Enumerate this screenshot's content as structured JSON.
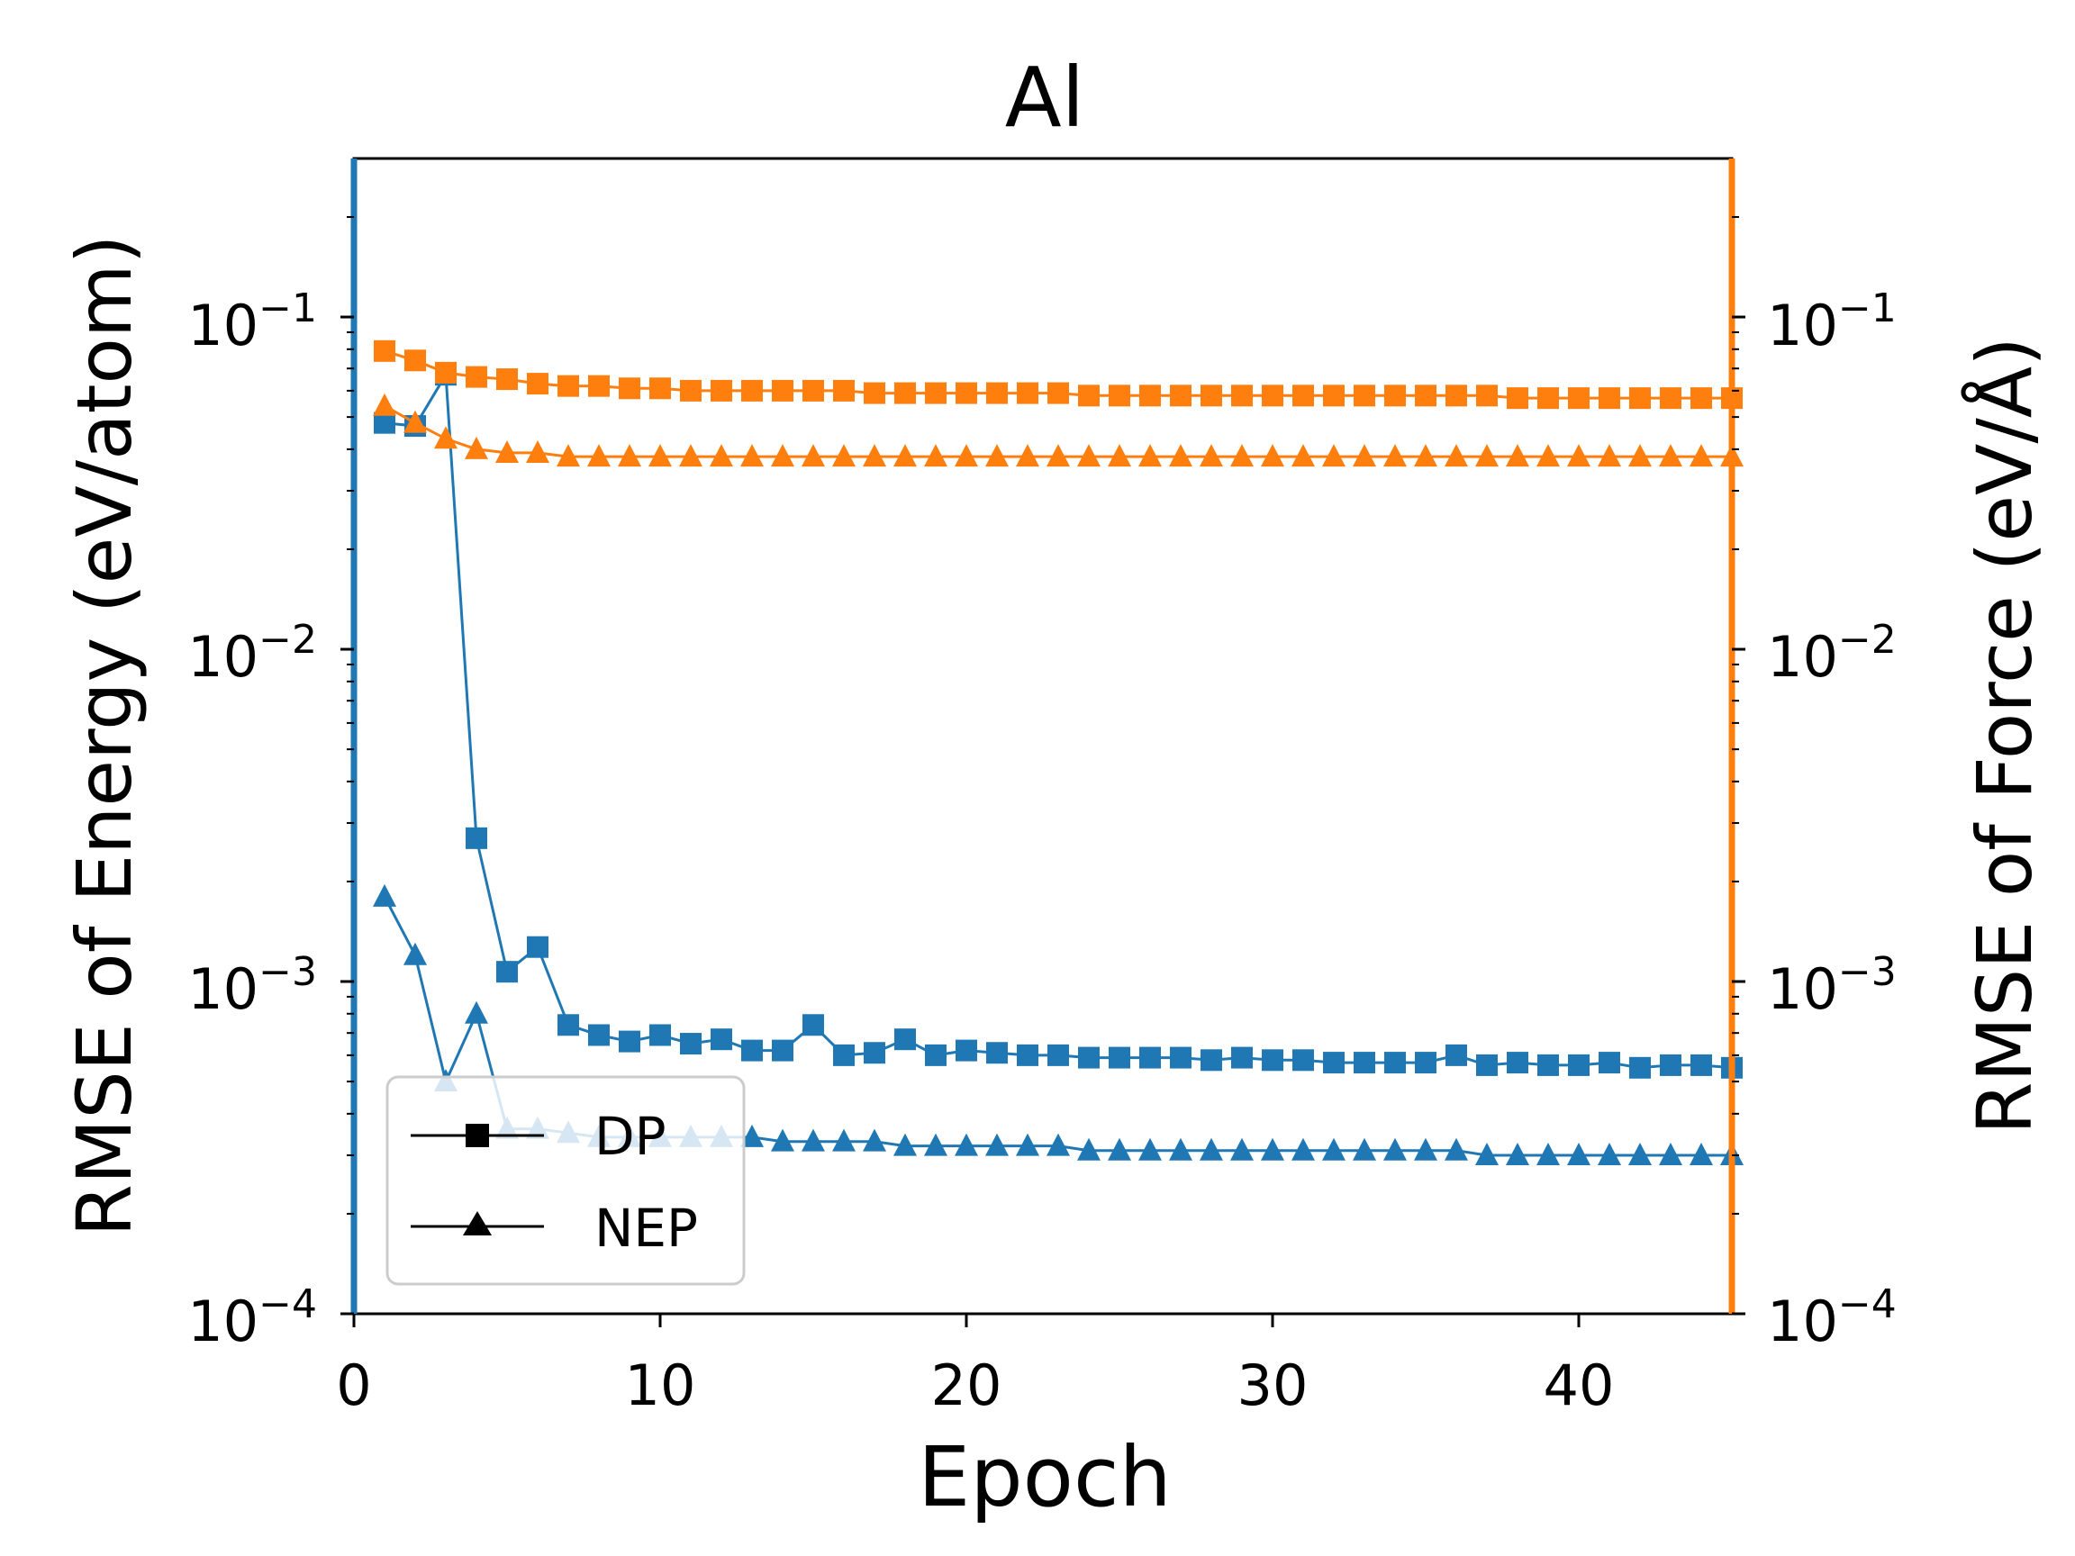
{
  "colors": {
    "energy": "#1f77b4",
    "force": "#ff7f0e",
    "axis": "#000000"
  },
  "chart_data": {
    "type": "line",
    "title": "Al",
    "xlabel": "Epoch",
    "ylabel_left": "RMSE of Energy (eV/atom)",
    "ylabel_right": "RMSE of Force (eV/Å)",
    "xlim": [
      0,
      45
    ],
    "ylim_left": [
      0.0001,
      0.3
    ],
    "ylim_right": [
      0.0001,
      0.3
    ],
    "yscale": "log",
    "x_ticks": [
      "0",
      "10",
      "20",
      "30",
      "40"
    ],
    "y_ticks": [
      {
        "base": "10",
        "exp": "−1"
      },
      {
        "base": "10",
        "exp": "−2"
      },
      {
        "base": "10",
        "exp": "−3"
      },
      {
        "base": "10",
        "exp": "−4"
      }
    ],
    "legend": {
      "position": "lower-left",
      "entries": [
        {
          "label": "DP",
          "marker": "square"
        },
        {
          "label": "NEP",
          "marker": "triangle"
        }
      ]
    },
    "x": [
      1,
      2,
      3,
      4,
      5,
      6,
      7,
      8,
      9,
      10,
      11,
      12,
      13,
      14,
      15,
      16,
      17,
      18,
      19,
      20,
      21,
      22,
      23,
      24,
      25,
      26,
      27,
      28,
      29,
      30,
      31,
      32,
      33,
      34,
      35,
      36,
      37,
      38,
      39,
      40,
      41,
      42,
      43,
      44,
      45
    ],
    "series": [
      {
        "name": "DP",
        "axis": "left",
        "marker": "square",
        "color": "energy",
        "values": [
          0.048,
          0.047,
          0.067,
          0.0027,
          0.00107,
          0.00127,
          0.00074,
          0.00069,
          0.00066,
          0.00069,
          0.00065,
          0.00067,
          0.00062,
          0.00062,
          0.00074,
          0.0006,
          0.00061,
          0.00067,
          0.0006,
          0.00062,
          0.00061,
          0.0006,
          0.0006,
          0.00059,
          0.00059,
          0.00059,
          0.00059,
          0.00058,
          0.00059,
          0.00058,
          0.00058,
          0.00057,
          0.00057,
          0.00057,
          0.00057,
          0.0006,
          0.00056,
          0.00057,
          0.00056,
          0.00056,
          0.00057,
          0.00055,
          0.00056,
          0.00056,
          0.00055
        ]
      },
      {
        "name": "NEP",
        "axis": "left",
        "marker": "triangle",
        "color": "energy",
        "values": [
          0.0018,
          0.0012,
          0.0005,
          0.0008,
          0.00036,
          0.00036,
          0.00035,
          0.00034,
          0.00034,
          0.00034,
          0.00034,
          0.00034,
          0.00034,
          0.00033,
          0.00033,
          0.00033,
          0.00033,
          0.00032,
          0.00032,
          0.00032,
          0.00032,
          0.00032,
          0.00032,
          0.00031,
          0.00031,
          0.00031,
          0.00031,
          0.00031,
          0.00031,
          0.00031,
          0.00031,
          0.00031,
          0.00031,
          0.00031,
          0.00031,
          0.00031,
          0.0003,
          0.0003,
          0.0003,
          0.0003,
          0.0003,
          0.0003,
          0.0003,
          0.0003,
          0.0003
        ]
      },
      {
        "name": "DP",
        "axis": "right",
        "marker": "square",
        "color": "force",
        "values": [
          0.079,
          0.074,
          0.068,
          0.066,
          0.065,
          0.063,
          0.062,
          0.062,
          0.061,
          0.061,
          0.06,
          0.06,
          0.06,
          0.06,
          0.06,
          0.06,
          0.059,
          0.059,
          0.059,
          0.059,
          0.059,
          0.059,
          0.059,
          0.058,
          0.058,
          0.058,
          0.058,
          0.058,
          0.058,
          0.058,
          0.058,
          0.058,
          0.058,
          0.058,
          0.058,
          0.058,
          0.058,
          0.057,
          0.057,
          0.057,
          0.057,
          0.057,
          0.057,
          0.057,
          0.057
        ]
      },
      {
        "name": "NEP",
        "axis": "right",
        "marker": "triangle",
        "color": "force",
        "values": [
          0.054,
          0.048,
          0.043,
          0.04,
          0.039,
          0.039,
          0.038,
          0.038,
          0.038,
          0.038,
          0.038,
          0.038,
          0.038,
          0.038,
          0.038,
          0.038,
          0.038,
          0.038,
          0.038,
          0.038,
          0.038,
          0.038,
          0.038,
          0.038,
          0.038,
          0.038,
          0.038,
          0.038,
          0.038,
          0.038,
          0.038,
          0.038,
          0.038,
          0.038,
          0.038,
          0.038,
          0.038,
          0.038,
          0.038,
          0.038,
          0.038,
          0.038,
          0.038,
          0.038,
          0.038
        ]
      }
    ]
  }
}
